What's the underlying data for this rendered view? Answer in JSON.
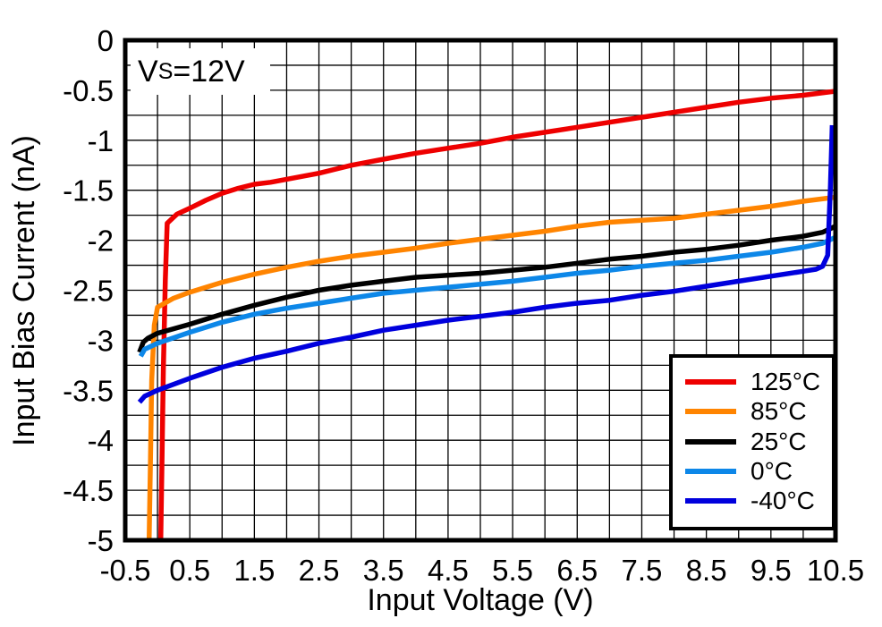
{
  "annotation": {
    "pre": "V",
    "sub": "S",
    "post": "=12V"
  },
  "chart_data": {
    "type": "line",
    "title": "",
    "xlabel": "Input Voltage (V)",
    "ylabel": "Input Bias Current (nA)",
    "xlim": [
      -0.5,
      10.5
    ],
    "ylim": [
      -5,
      0
    ],
    "grid": {
      "on": true,
      "x_step": 0.5,
      "y_step": 0.25,
      "color": "#000000"
    },
    "legend_position": "lower right",
    "xticks": [
      -0.5,
      0.5,
      1.5,
      2.5,
      3.5,
      4.5,
      5.5,
      6.5,
      7.5,
      8.5,
      9.5,
      10.5
    ],
    "xtick_labels": [
      "-0.5",
      "0.5",
      "1.5",
      "2.5",
      "3.5",
      "4.5",
      "5.5",
      "6.5",
      "7.5",
      "8.5",
      "9.5",
      "10.5"
    ],
    "yticks": [
      0,
      -0.5,
      -1,
      -1.5,
      -2,
      -2.5,
      -3,
      -3.5,
      -4,
      -4.5,
      -5
    ],
    "ytick_labels": [
      "0",
      "-0.5",
      "-1",
      "-1.5",
      "-2",
      "-2.5",
      "-3",
      "-3.5",
      "-4",
      "-4.5",
      "-5"
    ],
    "series": [
      {
        "name": "125°C",
        "color": "#ee0000",
        "points": [
          [
            0.05,
            -5
          ],
          [
            0.07,
            -4.2
          ],
          [
            0.09,
            -3.3
          ],
          [
            0.12,
            -2.4
          ],
          [
            0.15,
            -1.83
          ],
          [
            0.3,
            -1.74
          ],
          [
            0.5,
            -1.68
          ],
          [
            0.75,
            -1.6
          ],
          [
            1,
            -1.53
          ],
          [
            1.25,
            -1.48
          ],
          [
            1.5,
            -1.44
          ],
          [
            1.75,
            -1.42
          ],
          [
            2,
            -1.39
          ],
          [
            2.5,
            -1.33
          ],
          [
            3,
            -1.25
          ],
          [
            3.5,
            -1.19
          ],
          [
            4,
            -1.13
          ],
          [
            4.5,
            -1.08
          ],
          [
            5,
            -1.03
          ],
          [
            5.5,
            -0.97
          ],
          [
            6,
            -0.92
          ],
          [
            6.5,
            -0.87
          ],
          [
            7,
            -0.82
          ],
          [
            7.5,
            -0.77
          ],
          [
            8,
            -0.72
          ],
          [
            8.5,
            -0.67
          ],
          [
            9,
            -0.62
          ],
          [
            9.5,
            -0.58
          ],
          [
            10,
            -0.55
          ],
          [
            10.5,
            -0.51
          ]
        ]
      },
      {
        "name": "85°C",
        "color": "#ff8400",
        "points": [
          [
            -0.13,
            -5
          ],
          [
            -0.11,
            -4.2
          ],
          [
            -0.09,
            -3.4
          ],
          [
            -0.05,
            -2.85
          ],
          [
            0,
            -2.67
          ],
          [
            0.25,
            -2.58
          ],
          [
            0.5,
            -2.52
          ],
          [
            1,
            -2.42
          ],
          [
            1.5,
            -2.34
          ],
          [
            2,
            -2.27
          ],
          [
            2.5,
            -2.21
          ],
          [
            3,
            -2.16
          ],
          [
            3.5,
            -2.12
          ],
          [
            4,
            -2.08
          ],
          [
            4.5,
            -2.03
          ],
          [
            5,
            -1.99
          ],
          [
            5.5,
            -1.95
          ],
          [
            6,
            -1.91
          ],
          [
            6.5,
            -1.86
          ],
          [
            7,
            -1.82
          ],
          [
            7.5,
            -1.8
          ],
          [
            8,
            -1.78
          ],
          [
            8.5,
            -1.74
          ],
          [
            9,
            -1.7
          ],
          [
            9.5,
            -1.66
          ],
          [
            10,
            -1.61
          ],
          [
            10.5,
            -1.57
          ]
        ]
      },
      {
        "name": "25°C",
        "color": "#000000",
        "points": [
          [
            -0.28,
            -3.12
          ],
          [
            -0.22,
            -3.02
          ],
          [
            -0.15,
            -2.98
          ],
          [
            0,
            -2.93
          ],
          [
            0.5,
            -2.84
          ],
          [
            1,
            -2.74
          ],
          [
            1.5,
            -2.65
          ],
          [
            2,
            -2.57
          ],
          [
            2.5,
            -2.5
          ],
          [
            3,
            -2.45
          ],
          [
            3.5,
            -2.41
          ],
          [
            4,
            -2.37
          ],
          [
            4.5,
            -2.35
          ],
          [
            5,
            -2.33
          ],
          [
            5.5,
            -2.3
          ],
          [
            6,
            -2.27
          ],
          [
            6.5,
            -2.23
          ],
          [
            7,
            -2.19
          ],
          [
            7.5,
            -2.16
          ],
          [
            8,
            -2.12
          ],
          [
            8.5,
            -2.09
          ],
          [
            9,
            -2.05
          ],
          [
            9.5,
            -2.0
          ],
          [
            10,
            -1.96
          ],
          [
            10.3,
            -1.92
          ],
          [
            10.5,
            -1.86
          ]
        ]
      },
      {
        "name": "0°C",
        "color": "#0d87e8",
        "points": [
          [
            -0.26,
            -3.16
          ],
          [
            -0.2,
            -3.09
          ],
          [
            -0.1,
            -3.06
          ],
          [
            0,
            -3.03
          ],
          [
            0.5,
            -2.92
          ],
          [
            1,
            -2.82
          ],
          [
            1.5,
            -2.74
          ],
          [
            2,
            -2.68
          ],
          [
            2.5,
            -2.63
          ],
          [
            3,
            -2.58
          ],
          [
            3.5,
            -2.53
          ],
          [
            4,
            -2.5
          ],
          [
            4.5,
            -2.47
          ],
          [
            5,
            -2.44
          ],
          [
            5.5,
            -2.41
          ],
          [
            6,
            -2.37
          ],
          [
            6.5,
            -2.33
          ],
          [
            7,
            -2.3
          ],
          [
            7.5,
            -2.26
          ],
          [
            8,
            -2.23
          ],
          [
            8.5,
            -2.2
          ],
          [
            9,
            -2.16
          ],
          [
            9.5,
            -2.12
          ],
          [
            10,
            -2.07
          ],
          [
            10.3,
            -2.03
          ],
          [
            10.5,
            -1.97
          ]
        ]
      },
      {
        "name": "-40°C",
        "color": "#0000dd",
        "points": [
          [
            -0.28,
            -3.62
          ],
          [
            -0.2,
            -3.56
          ],
          [
            0,
            -3.5
          ],
          [
            0.5,
            -3.38
          ],
          [
            1,
            -3.27
          ],
          [
            1.5,
            -3.18
          ],
          [
            2,
            -3.11
          ],
          [
            2.5,
            -3.03
          ],
          [
            3,
            -2.97
          ],
          [
            3.5,
            -2.9
          ],
          [
            4,
            -2.85
          ],
          [
            4.5,
            -2.8
          ],
          [
            5,
            -2.76
          ],
          [
            5.5,
            -2.72
          ],
          [
            6,
            -2.67
          ],
          [
            6.5,
            -2.63
          ],
          [
            7,
            -2.6
          ],
          [
            7.5,
            -2.55
          ],
          [
            8,
            -2.51
          ],
          [
            8.5,
            -2.46
          ],
          [
            9,
            -2.41
          ],
          [
            9.5,
            -2.36
          ],
          [
            10,
            -2.31
          ],
          [
            10.2,
            -2.29
          ],
          [
            10.3,
            -2.26
          ],
          [
            10.38,
            -2.15
          ],
          [
            10.42,
            -1.5
          ],
          [
            10.45,
            -0.85
          ]
        ]
      }
    ]
  }
}
